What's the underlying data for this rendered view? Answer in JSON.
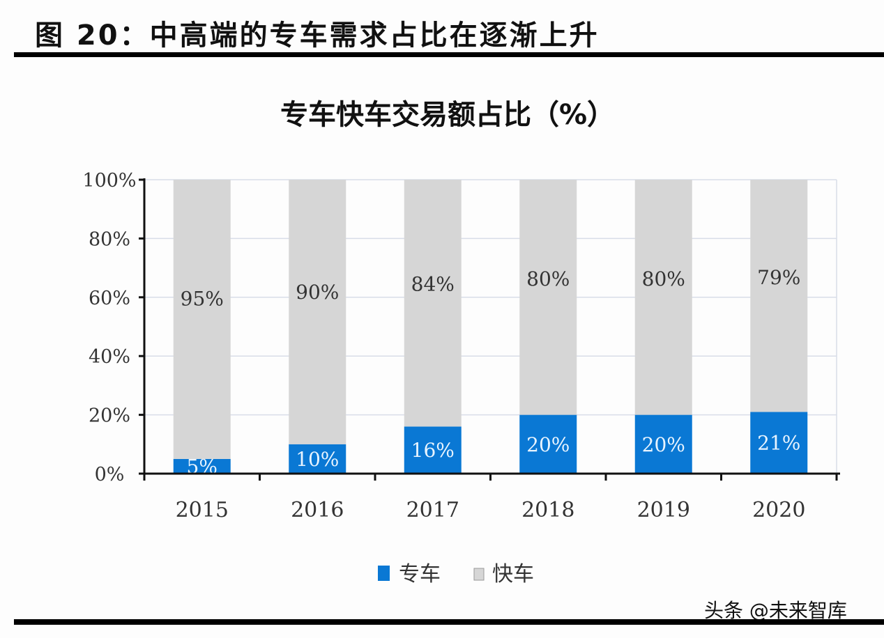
{
  "figure_title": "图 20：中高端的专车需求占比在逐渐上升",
  "watermark": "头条 @未来智库",
  "colors": {
    "zhuanche": "#0a78d4",
    "kuaiche": "#d6d6d6",
    "grid": "#d8dde8"
  },
  "chart_data": {
    "type": "bar",
    "stacked": true,
    "title": "专车快车交易额占比（%）",
    "categories": [
      "2015",
      "2016",
      "2017",
      "2018",
      "2019",
      "2020"
    ],
    "series": [
      {
        "name": "专车",
        "values": [
          5,
          10,
          16,
          20,
          20,
          21
        ],
        "labels": [
          "5%",
          "10%",
          "16%",
          "20%",
          "20%",
          "21%"
        ]
      },
      {
        "name": "快车",
        "values": [
          95,
          90,
          84,
          80,
          80,
          79
        ],
        "labels": [
          "95%",
          "90%",
          "84%",
          "80%",
          "80%",
          "79%"
        ]
      }
    ],
    "ylim": [
      0,
      100
    ],
    "yticks": [
      "0%",
      "20%",
      "40%",
      "60%",
      "80%",
      "100%"
    ],
    "grid": true,
    "legend_position": "bottom"
  }
}
